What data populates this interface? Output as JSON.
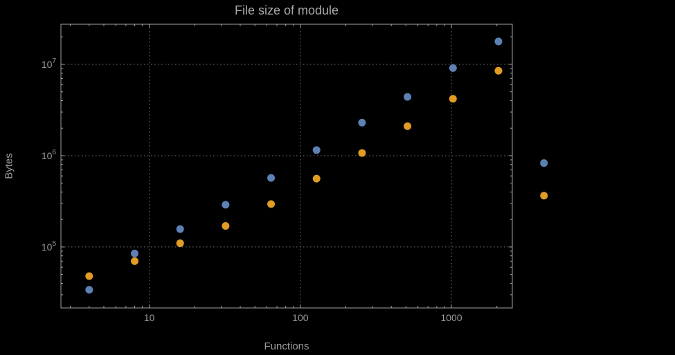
{
  "figure": {
    "title": "File size of module",
    "xlabel": "Functions",
    "ylabel": "Bytes"
  },
  "chart_data": {
    "type": "scatter",
    "title": "File size of module",
    "xlabel": "Functions",
    "ylabel": "Bytes",
    "x_scale": "log",
    "y_scale": "log",
    "xlim": [
      2.6,
      2530
    ],
    "ylim": [
      21500,
      27500000
    ],
    "x_ticks": [
      10,
      100,
      1000
    ],
    "x_tick_labels": [
      "10",
      "100",
      "1000"
    ],
    "y_ticks": [
      100000,
      1000000,
      10000000
    ],
    "y_tick_labels": [
      "10^5",
      "10^6",
      "10^7"
    ],
    "grid": "dotted",
    "legend": "none-visible",
    "x": [
      4,
      8,
      16,
      32,
      64,
      128,
      256,
      512,
      1024,
      2048
    ],
    "series": [
      {
        "name": "series-1",
        "color": "#5e81b5",
        "values": [
          34000,
          85000,
          157000,
          290000,
          570000,
          1150000,
          2300000,
          4400000,
          9100000,
          17800000
        ]
      },
      {
        "name": "series-2",
        "color": "#e19c24",
        "values": [
          48000,
          70000,
          110000,
          170000,
          295000,
          560000,
          1070000,
          2100000,
          4200000,
          8500000
        ]
      }
    ],
    "outside_markers": [
      {
        "color": "#5e81b5",
        "x": 4100,
        "y": 830000
      },
      {
        "color": "#e19c24",
        "x": 4100,
        "y": 365000
      }
    ],
    "colors": {
      "background": "#000000",
      "frame": "#a2a2a2",
      "grid": "#787878",
      "tick_text": "#9c9c9c",
      "title_text": "#a9a9a9",
      "series1": "#5e81b5",
      "series2": "#e19c24"
    }
  }
}
